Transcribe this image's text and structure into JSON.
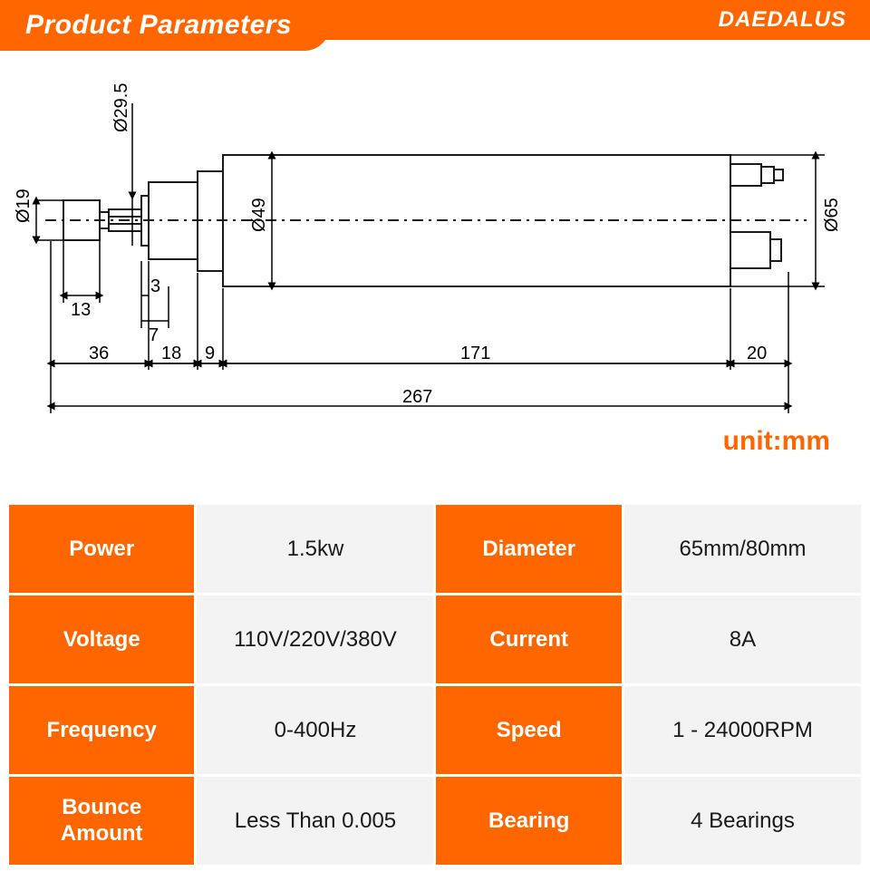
{
  "header": {
    "title": "Product Parameters",
    "brand": "DAEDALUS",
    "title_bg": "#ff6600",
    "title_color": "#ffffff"
  },
  "unit_label": "unit:mm",
  "unit_label_color": "#ff6600",
  "diagram": {
    "type": "engineering-dimension-drawing",
    "stroke_color": "#1a1a1a",
    "stroke_width": 2,
    "horizontal_dims_mm": {
      "collet_tip": 13,
      "gap1": 3,
      "gap2": 7,
      "shaft_section": 36,
      "flange_section": 18,
      "step_section": 9,
      "body_length": 171,
      "back_section": 20,
      "overall_length": 267
    },
    "diameter_dims_mm": {
      "collet": 19,
      "shaft": 29.5,
      "step": 49,
      "body": 65
    },
    "labels": {
      "d19": "Ø19",
      "d29_5": "Ø29.5",
      "d49": "Ø49",
      "d65": "Ø65",
      "l13": "13",
      "l3": "3",
      "l7": "7",
      "l36": "36",
      "l18": "18",
      "l9": "9",
      "l171": "171",
      "l20": "20",
      "l267": "267"
    }
  },
  "spec_table": {
    "header_bg": "#ff6600",
    "header_fg": "#ffffff",
    "value_bg": "#f3f3f3",
    "value_fg": "#1a1a1a",
    "border_color": "#ffffff",
    "rows": [
      {
        "k1": "Power",
        "v1": "1.5kw",
        "k2": "Diameter",
        "v2": "65mm/80mm"
      },
      {
        "k1": "Voltage",
        "v1": "110V/220V/380V",
        "k2": "Current",
        "v2": "8A"
      },
      {
        "k1": "Frequency",
        "v1": "0-400Hz",
        "k2": "Speed",
        "v2": "1 - 24000RPM"
      },
      {
        "k1": "Bounce Amount",
        "v1": "Less Than 0.005",
        "k2": "Bearing",
        "v2": "4 Bearings"
      }
    ]
  }
}
